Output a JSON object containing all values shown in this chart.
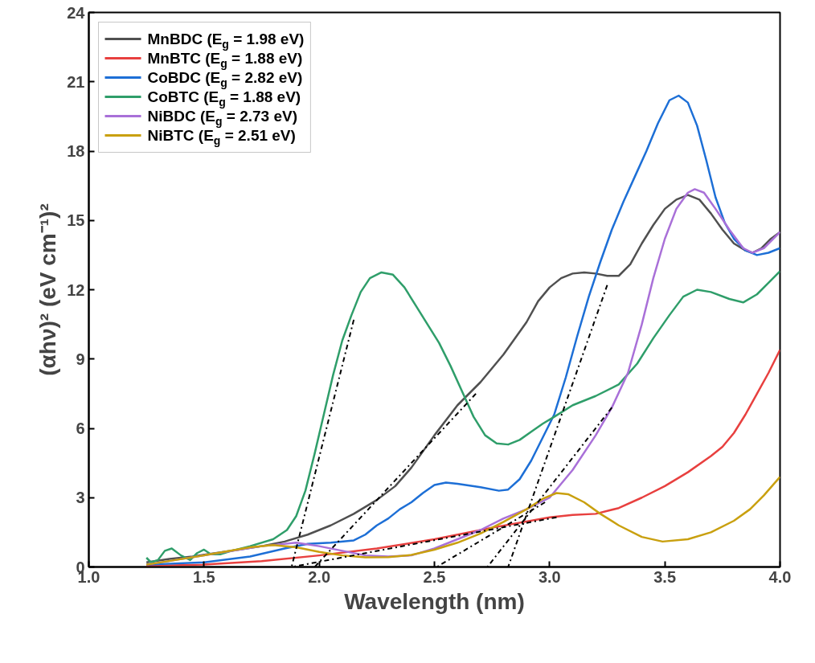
{
  "chart_data": {
    "type": "line",
    "xlabel": "Wavelength (nm)",
    "ylabel": "(αhν)² (eV cm⁻¹)²",
    "xlim": [
      1.0,
      4.0
    ],
    "ylim": [
      0,
      24
    ],
    "xticks": [
      {
        "value": 1,
        "label": "1.0"
      },
      {
        "value": 1.5,
        "label": "1.5"
      },
      {
        "value": 2,
        "label": "2.0"
      },
      {
        "value": 2.5,
        "label": "2.5"
      },
      {
        "value": 3,
        "label": "3.0"
      },
      {
        "value": 3.5,
        "label": "3.5"
      },
      {
        "value": 4,
        "label": "4.0"
      }
    ],
    "yticks": [
      0,
      3,
      6,
      9,
      12,
      15,
      18,
      21,
      24
    ],
    "grid": false,
    "legend": "top left",
    "line_style": "solid",
    "marker": "none",
    "series": [
      {
        "name": "MnBDC (E$_{g}$ = 1.98 eV)",
        "color": "#505050",
        "x": [
          1.25,
          1.35,
          1.45,
          1.55,
          1.65,
          1.75,
          1.85,
          1.95,
          2.05,
          2.15,
          2.25,
          2.33,
          2.4,
          2.5,
          2.6,
          2.7,
          2.8,
          2.9,
          2.95,
          3.0,
          3.05,
          3.1,
          3.15,
          3.2,
          3.25,
          3.3,
          3.35,
          3.4,
          3.45,
          3.5,
          3.55,
          3.6,
          3.65,
          3.7,
          3.75,
          3.8,
          3.85,
          3.88,
          3.92,
          3.96,
          4.0
        ],
        "values": [
          0.2,
          0.35,
          0.45,
          0.6,
          0.75,
          0.9,
          1.1,
          1.4,
          1.8,
          2.3,
          2.9,
          3.5,
          4.3,
          5.7,
          7.0,
          8.0,
          9.2,
          10.6,
          11.5,
          12.1,
          12.5,
          12.7,
          12.75,
          12.7,
          12.6,
          12.6,
          13.1,
          14.0,
          14.8,
          15.5,
          15.9,
          16.1,
          15.9,
          15.3,
          14.6,
          14.0,
          13.7,
          13.6,
          13.8,
          14.2,
          14.5
        ]
      },
      {
        "name": "MnBTC (E$_{g}$ = 1.88 eV)",
        "color": "#e8403f",
        "x": [
          1.25,
          1.5,
          1.75,
          2.0,
          2.25,
          2.5,
          2.75,
          3.0,
          3.1,
          3.2,
          3.3,
          3.4,
          3.5,
          3.6,
          3.7,
          3.75,
          3.8,
          3.85,
          3.9,
          3.95,
          4.0
        ],
        "values": [
          0.05,
          0.1,
          0.25,
          0.5,
          0.8,
          1.2,
          1.7,
          2.15,
          2.25,
          2.3,
          2.55,
          3.0,
          3.5,
          4.1,
          4.8,
          5.2,
          5.8,
          6.6,
          7.5,
          8.4,
          9.4
        ]
      },
      {
        "name": "CoBDC (E$_{g}$ = 2.82 eV)",
        "color": "#1d6fd6",
        "x": [
          1.25,
          1.5,
          1.7,
          1.85,
          1.95,
          2.05,
          2.15,
          2.2,
          2.25,
          2.3,
          2.35,
          2.4,
          2.45,
          2.5,
          2.55,
          2.6,
          2.7,
          2.78,
          2.82,
          2.87,
          2.92,
          2.97,
          3.02,
          3.07,
          3.12,
          3.17,
          3.22,
          3.27,
          3.32,
          3.37,
          3.42,
          3.47,
          3.52,
          3.56,
          3.6,
          3.64,
          3.68,
          3.72,
          3.76,
          3.8,
          3.85,
          3.9,
          3.95,
          4.0
        ],
        "values": [
          0.1,
          0.2,
          0.45,
          0.8,
          1.0,
          1.05,
          1.15,
          1.4,
          1.8,
          2.1,
          2.5,
          2.8,
          3.2,
          3.55,
          3.65,
          3.6,
          3.45,
          3.3,
          3.35,
          3.8,
          4.6,
          5.6,
          6.6,
          8.2,
          10.0,
          11.7,
          13.2,
          14.6,
          15.8,
          16.9,
          18.0,
          19.2,
          20.2,
          20.4,
          20.1,
          19.1,
          17.6,
          16.0,
          14.9,
          14.2,
          13.7,
          13.5,
          13.6,
          13.8
        ]
      },
      {
        "name": "CoBTC (E$_{g}$ = 1.88 eV)",
        "color": "#2f9e6a",
        "x": [
          1.25,
          1.27,
          1.3,
          1.33,
          1.36,
          1.4,
          1.44,
          1.47,
          1.5,
          1.53,
          1.57,
          1.62,
          1.7,
          1.8,
          1.86,
          1.9,
          1.94,
          1.98,
          2.02,
          2.06,
          2.1,
          2.14,
          2.18,
          2.22,
          2.27,
          2.32,
          2.37,
          2.42,
          2.47,
          2.52,
          2.57,
          2.62,
          2.67,
          2.72,
          2.77,
          2.82,
          2.87,
          2.92,
          2.97,
          3.02,
          3.1,
          3.2,
          3.3,
          3.38,
          3.45,
          3.52,
          3.58,
          3.64,
          3.7,
          3.78,
          3.84,
          3.9,
          3.95,
          4.0
        ],
        "values": [
          0.4,
          0.2,
          0.3,
          0.7,
          0.8,
          0.5,
          0.3,
          0.6,
          0.75,
          0.55,
          0.55,
          0.7,
          0.9,
          1.2,
          1.6,
          2.2,
          3.3,
          4.9,
          6.6,
          8.3,
          9.8,
          10.9,
          11.9,
          12.5,
          12.75,
          12.65,
          12.1,
          11.3,
          10.5,
          9.7,
          8.7,
          7.6,
          6.5,
          5.7,
          5.35,
          5.3,
          5.5,
          5.85,
          6.2,
          6.5,
          7.0,
          7.4,
          7.9,
          8.8,
          9.9,
          10.9,
          11.7,
          12.0,
          11.9,
          11.6,
          11.45,
          11.8,
          12.3,
          12.8
        ]
      },
      {
        "name": "NiBDC (E$_{g}$ = 2.73 eV)",
        "color": "#a970d8",
        "x": [
          1.25,
          1.5,
          1.75,
          1.9,
          2.0,
          2.1,
          2.2,
          2.3,
          2.4,
          2.5,
          2.6,
          2.7,
          2.8,
          2.9,
          3.0,
          3.1,
          3.2,
          3.27,
          3.34,
          3.4,
          3.45,
          3.5,
          3.55,
          3.6,
          3.63,
          3.67,
          3.72,
          3.78,
          3.84,
          3.88,
          3.93,
          4.0
        ],
        "values": [
          0.1,
          0.5,
          0.9,
          1.05,
          0.9,
          0.7,
          0.5,
          0.45,
          0.5,
          0.8,
          1.2,
          1.6,
          2.1,
          2.5,
          3.0,
          4.2,
          5.7,
          6.9,
          8.4,
          10.5,
          12.5,
          14.2,
          15.5,
          16.2,
          16.35,
          16.2,
          15.5,
          14.6,
          13.8,
          13.6,
          13.8,
          14.5
        ]
      },
      {
        "name": "NiBTC (E$_{g}$ = 2.51 eV)",
        "color": "#c9a00f",
        "x": [
          1.25,
          1.5,
          1.7,
          1.8,
          1.9,
          2.0,
          2.1,
          2.2,
          2.3,
          2.4,
          2.5,
          2.6,
          2.7,
          2.8,
          2.9,
          2.97,
          3.03,
          3.08,
          3.15,
          3.22,
          3.3,
          3.4,
          3.49,
          3.6,
          3.7,
          3.8,
          3.87,
          3.93,
          4.0
        ],
        "values": [
          0.1,
          0.5,
          0.85,
          0.95,
          0.85,
          0.65,
          0.5,
          0.42,
          0.43,
          0.52,
          0.75,
          1.05,
          1.45,
          1.95,
          2.5,
          2.95,
          3.2,
          3.15,
          2.8,
          2.3,
          1.8,
          1.3,
          1.1,
          1.2,
          1.5,
          2.0,
          2.5,
          3.1,
          3.9
        ]
      },
      {
        "type": "line",
        "color": "#000000",
        "line_style": "dashed",
        "x": [
          2.68,
          1.98
        ],
        "values": [
          7.5,
          0
        ]
      },
      {
        "type": "line",
        "color": "#000000",
        "line_style": "dashed",
        "x": [
          3.03,
          1.88
        ],
        "values": [
          2.15,
          0
        ]
      },
      {
        "type": "line",
        "color": "#000000",
        "line_style": "dashed",
        "x": [
          3.25,
          2.82
        ],
        "values": [
          12.2,
          0
        ]
      },
      {
        "type": "line",
        "color": "#000000",
        "line_style": "dashed",
        "x": [
          2.15,
          1.88
        ],
        "values": [
          10.7,
          0
        ]
      },
      {
        "type": "line",
        "color": "#000000",
        "line_style": "dashed",
        "x": [
          3.27,
          2.73
        ],
        "values": [
          6.9,
          0
        ]
      },
      {
        "type": "line",
        "color": "#000000",
        "line_style": "dashed",
        "x": [
          2.98,
          2.51
        ],
        "values": [
          2.8,
          0
        ]
      }
    ]
  }
}
